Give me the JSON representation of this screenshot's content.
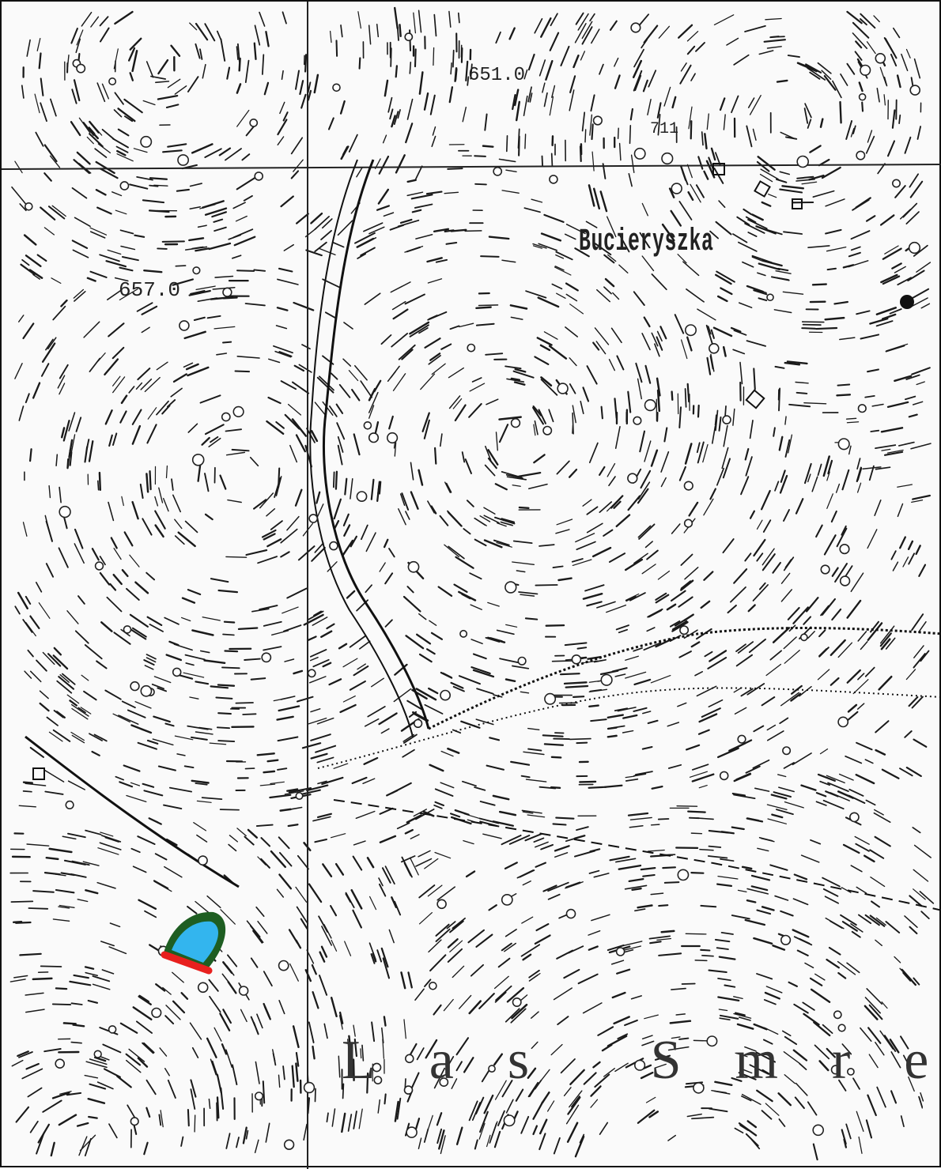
{
  "map": {
    "place_name": "Bucieryszka",
    "elevation_label_1": "657.0",
    "elevation_label_2": "651.0",
    "elevation_label_3": "711",
    "forest_name": "Las Smre"
  },
  "marker": {
    "fill_color": "#33b5ee",
    "outline_color": "#1e5e22",
    "base_color": "#e8201e"
  },
  "icons": {
    "village": "square-house-icon",
    "spot_height": "filled-dot-icon",
    "tree": "circle-tree-icon"
  }
}
